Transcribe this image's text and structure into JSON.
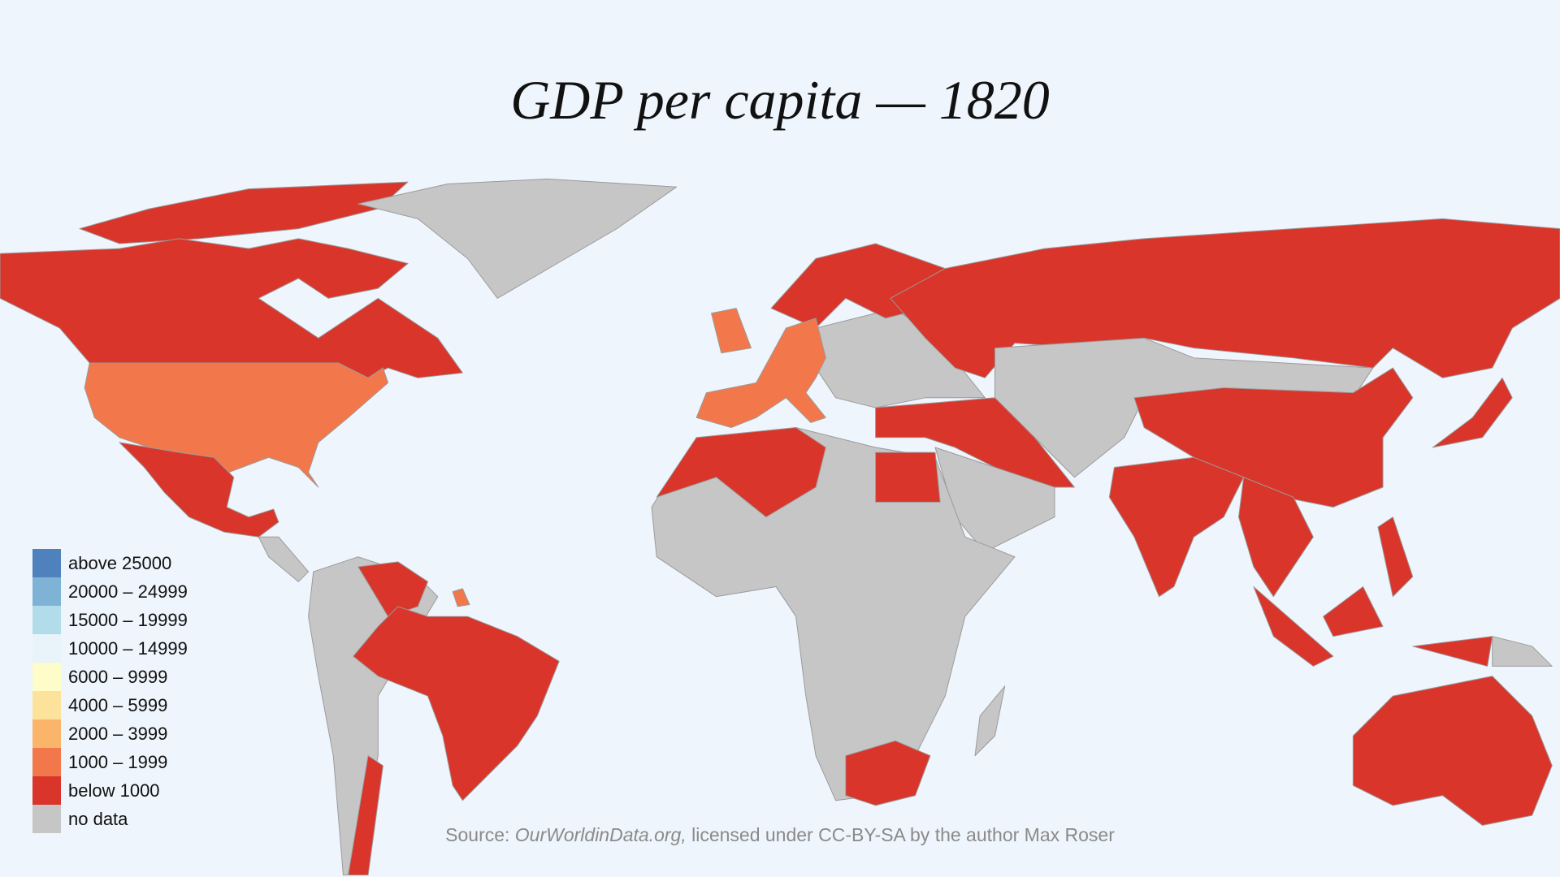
{
  "header": {
    "title": "GDP per capita — 1820"
  },
  "legend": [
    {
      "label": "above 25000",
      "color": "#4f81bd"
    },
    {
      "label": "20000 – 24999",
      "color": "#7fb3d5"
    },
    {
      "label": "15000 – 19999",
      "color": "#b3dcea"
    },
    {
      "label": "10000 – 14999",
      "color": "#e8f4fa"
    },
    {
      "label": "6000 – 9999",
      "color": "#fefcc8"
    },
    {
      "label": "4000 – 5999",
      "color": "#fde29c"
    },
    {
      "label": "2000 – 3999",
      "color": "#fbb56b"
    },
    {
      "label": "1000 – 1999",
      "color": "#f2784b"
    },
    {
      "label": "below 1000",
      "color": "#d9352a"
    },
    {
      "label": "no data",
      "color": "#c6c6c6"
    }
  ],
  "source": {
    "prefix": "Source: ",
    "site": "OurWorldinData.org,",
    "suffix": " licensed under CC-BY-SA by the author Max Roser"
  }
}
